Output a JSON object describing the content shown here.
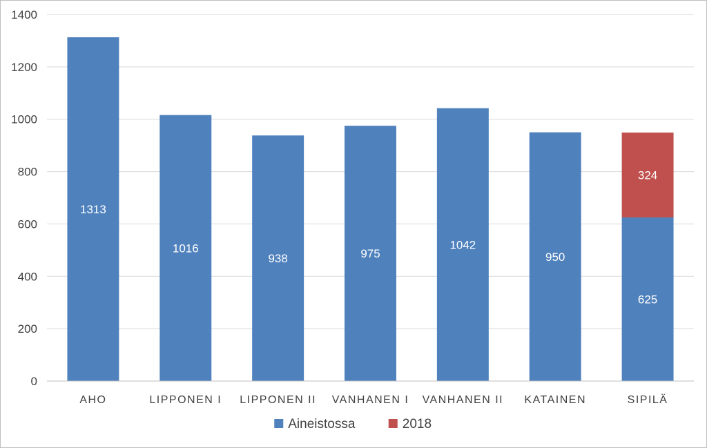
{
  "chart_data": {
    "type": "bar",
    "stacked": true,
    "title": "",
    "xlabel": "",
    "ylabel": "",
    "categories": [
      "AHO",
      "LIPPONEN I",
      "LIPPONEN II",
      "VANHANEN I",
      "VANHANEN II",
      "KATAINEN",
      "SIPILÄ"
    ],
    "series": [
      {
        "name": "Aineistossa",
        "color": "#4f81bd",
        "values": [
          1313,
          1016,
          938,
          975,
          1042,
          950,
          625
        ]
      },
      {
        "name": "2018",
        "color": "#c0504d",
        "values": [
          0,
          0,
          0,
          0,
          0,
          0,
          324
        ]
      }
    ],
    "ylim": [
      0,
      1400
    ],
    "yticks": [
      0,
      200,
      400,
      600,
      800,
      1000,
      1200,
      1400
    ],
    "grid": true,
    "legend_position": "bottom"
  }
}
